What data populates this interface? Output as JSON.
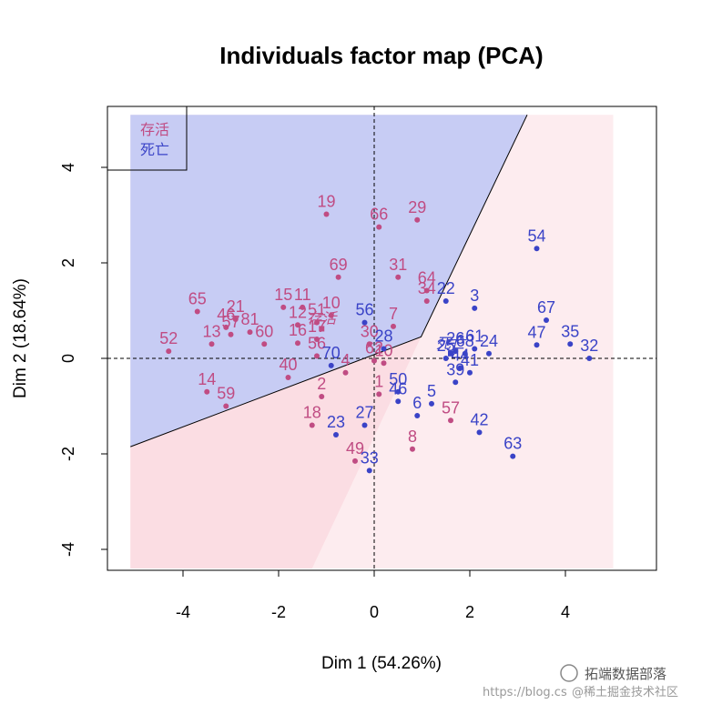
{
  "chart_data": {
    "type": "scatter",
    "title": "Individuals factor map (PCA)",
    "xlabel": "Dim 1 (54.26%)",
    "ylabel": "Dim 2 (18.64%)",
    "xlim": [
      -5.5,
      5.9
    ],
    "ylim": [
      -4.4,
      5.2
    ],
    "xticks": [
      -4,
      -2,
      0,
      2,
      4
    ],
    "yticks": [
      -4,
      -2,
      0,
      2,
      4
    ],
    "tick_labels_x": [
      "-4",
      "-2",
      "0",
      "2",
      "4"
    ],
    "tick_labels_y": [
      "-4",
      "-2",
      "0",
      "2",
      "4"
    ],
    "legend": {
      "position": "top-left",
      "entries": [
        {
          "label": "存活",
          "color": "#c04c83"
        },
        {
          "label": "死亡",
          "color": "#3a43c7"
        }
      ]
    },
    "regions": {
      "boundary": [
        [
          -5.1,
          -1.85
        ],
        [
          0.98,
          0.45
        ],
        [
          3.2,
          5.1
        ]
      ],
      "blue_region_color": "#c7ccf4",
      "pink_region_color": "#fbdde3",
      "pink_light_color": "#fdecef"
    },
    "centroids": [
      {
        "label": "存活",
        "x": -1.1,
        "y": 0.62,
        "color": "#c04c83"
      },
      {
        "label": "死亡",
        "x": 1.6,
        "y": 0.1,
        "color": "#3a43c7"
      }
    ],
    "series": [
      {
        "name": "存活",
        "color": "#c04c83",
        "points": [
          {
            "label": "19",
            "x": -1.0,
            "y": 3.02
          },
          {
            "label": "66",
            "x": 0.1,
            "y": 2.75
          },
          {
            "label": "29",
            "x": 0.9,
            "y": 2.9
          },
          {
            "label": "69",
            "x": -0.75,
            "y": 1.7
          },
          {
            "label": "31",
            "x": 0.5,
            "y": 1.7
          },
          {
            "label": "64",
            "x": 1.1,
            "y": 1.42
          },
          {
            "label": "34",
            "x": 1.1,
            "y": 1.2
          },
          {
            "label": "65",
            "x": -3.7,
            "y": 0.98
          },
          {
            "label": "21",
            "x": -2.9,
            "y": 0.82
          },
          {
            "label": "46",
            "x": -3.1,
            "y": 0.65
          },
          {
            "label": "15",
            "x": -1.9,
            "y": 1.07
          },
          {
            "label": "11",
            "x": -1.5,
            "y": 1.07
          },
          {
            "label": "10",
            "x": -0.9,
            "y": 0.9
          },
          {
            "label": "12",
            "x": -1.6,
            "y": 0.7
          },
          {
            "label": "51",
            "x": -1.2,
            "y": 0.75
          },
          {
            "label": "57",
            "x": -3.0,
            "y": 0.5
          },
          {
            "label": "81",
            "x": -2.6,
            "y": 0.55
          },
          {
            "label": "13",
            "x": -3.4,
            "y": 0.3
          },
          {
            "label": "60",
            "x": -2.3,
            "y": 0.3
          },
          {
            "label": "16",
            "x": -1.6,
            "y": 0.32
          },
          {
            "label": "17",
            "x": -1.2,
            "y": 0.4
          },
          {
            "label": "52",
            "x": -4.3,
            "y": 0.15
          },
          {
            "label": "7",
            "x": 0.4,
            "y": 0.67
          },
          {
            "label": "30",
            "x": -0.1,
            "y": 0.3
          },
          {
            "label": "56",
            "x": -1.2,
            "y": 0.05
          },
          {
            "label": "14",
            "x": -3.5,
            "y": -0.7
          },
          {
            "label": "40",
            "x": -1.8,
            "y": -0.4
          },
          {
            "label": "59",
            "x": -3.1,
            "y": -1.0
          },
          {
            "label": "4",
            "x": -0.6,
            "y": -0.3
          },
          {
            "label": "2",
            "x": -1.1,
            "y": -0.8
          },
          {
            "label": "62",
            "x": 0.0,
            "y": -0.05
          },
          {
            "label": "10",
            "x": 0.2,
            "y": -0.1
          },
          {
            "label": "18",
            "x": -1.3,
            "y": -1.4
          },
          {
            "label": "1",
            "x": 0.1,
            "y": -0.75
          },
          {
            "label": "57",
            "x": 1.6,
            "y": -1.3
          },
          {
            "label": "8",
            "x": 0.8,
            "y": -1.9
          },
          {
            "label": "49",
            "x": -0.4,
            "y": -2.15
          }
        ]
      },
      {
        "name": "死亡",
        "color": "#3a43c7",
        "points": [
          {
            "label": "54",
            "x": 3.4,
            "y": 2.3
          },
          {
            "label": "22",
            "x": 1.5,
            "y": 1.2
          },
          {
            "label": "3",
            "x": 2.1,
            "y": 1.05
          },
          {
            "label": "67",
            "x": 3.6,
            "y": 0.8
          },
          {
            "label": "56",
            "x": -0.2,
            "y": 0.75
          },
          {
            "label": "28",
            "x": 0.2,
            "y": 0.2
          },
          {
            "label": "47",
            "x": 3.4,
            "y": 0.28
          },
          {
            "label": "35",
            "x": 4.1,
            "y": 0.3
          },
          {
            "label": "32",
            "x": 4.5,
            "y": 0.0
          },
          {
            "label": "61",
            "x": 2.1,
            "y": 0.2
          },
          {
            "label": "68",
            "x": 1.9,
            "y": 0.1
          },
          {
            "label": "24",
            "x": 2.4,
            "y": 0.1
          },
          {
            "label": "25",
            "x": 1.5,
            "y": 0.0
          },
          {
            "label": "26",
            "x": 1.7,
            "y": 0.15
          },
          {
            "label": "44",
            "x": 1.8,
            "y": -0.2
          },
          {
            "label": "41",
            "x": 2.0,
            "y": -0.3
          },
          {
            "label": "70",
            "x": -0.9,
            "y": -0.15
          },
          {
            "label": "39",
            "x": 1.7,
            "y": -0.5
          },
          {
            "label": "50",
            "x": 0.5,
            "y": -0.7
          },
          {
            "label": "5",
            "x": 1.2,
            "y": -0.95
          },
          {
            "label": "46",
            "x": 0.5,
            "y": -0.9
          },
          {
            "label": "6",
            "x": 0.9,
            "y": -1.2
          },
          {
            "label": "42",
            "x": 2.2,
            "y": -1.55
          },
          {
            "label": "27",
            "x": -0.2,
            "y": -1.4
          },
          {
            "label": "23",
            "x": -0.8,
            "y": -1.6
          },
          {
            "label": "63",
            "x": 2.9,
            "y": -2.05
          },
          {
            "label": "33",
            "x": -0.1,
            "y": -2.35
          }
        ]
      }
    ]
  },
  "watermark": {
    "line1": "拓端数据部落",
    "line2": "@稀土掘金技术社区",
    "url": "https://blog.cs"
  }
}
